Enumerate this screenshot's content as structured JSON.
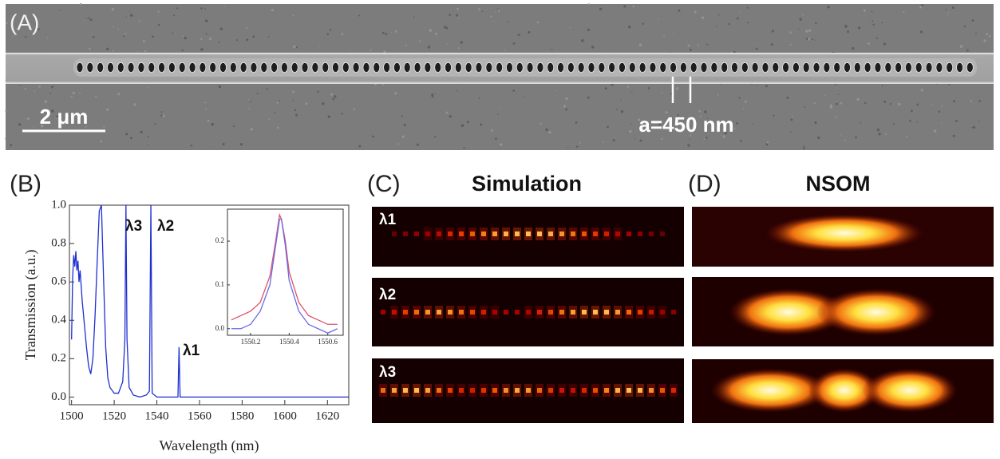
{
  "panels": {
    "a": {
      "label": "(A)",
      "scale_bar": "2 μm",
      "period": "a=450 nm"
    },
    "b": {
      "label": "(B)"
    },
    "c": {
      "label": "(C)",
      "title": "Simulation",
      "modes": [
        "λ1",
        "λ2",
        "λ3"
      ]
    },
    "d": {
      "label": "(D)",
      "title": "NSOM"
    }
  },
  "chart_data": [
    {
      "type": "line",
      "x_label": "Wavelength (nm)",
      "y_label": "Transmission (a.u.)",
      "annotations": [
        "λ3",
        "λ2",
        "λ1"
      ],
      "x": [
        1500,
        1500.5,
        1501,
        1501.5,
        1502,
        1502.5,
        1503,
        1503.5,
        1504,
        1505,
        1506,
        1507,
        1508,
        1509,
        1510,
        1511,
        1512,
        1513,
        1514,
        1515,
        1516,
        1517,
        1518,
        1520,
        1522,
        1524,
        1525,
        1525.5,
        1526,
        1527,
        1529,
        1532,
        1535,
        1536.5,
        1537.2,
        1537.8,
        1540,
        1545,
        1549.9,
        1550.4,
        1550.9,
        1560,
        1580,
        1600,
        1630
      ],
      "series": [
        {
          "color": "#1f2fd0",
          "values": [
            0.3,
            0.62,
            0.74,
            0.68,
            0.76,
            0.66,
            0.71,
            0.6,
            0.66,
            0.5,
            0.38,
            0.26,
            0.16,
            0.12,
            0.2,
            0.42,
            0.7,
            0.97,
            1.0,
            0.62,
            0.26,
            0.1,
            0.05,
            0.02,
            0.02,
            0.08,
            0.3,
            1.0,
            0.3,
            0.05,
            0.01,
            0.0,
            0.01,
            0.03,
            1.0,
            0.02,
            0.0,
            0.0,
            0.0,
            0.26,
            0.0,
            0.0,
            0.0,
            0.0,
            0.0
          ]
        }
      ],
      "xlim": [
        1499,
        1630
      ],
      "ylim": [
        -0.04,
        1.0
      ],
      "xticks": [
        1500,
        1520,
        1540,
        1560,
        1580,
        1600,
        1620
      ],
      "yticks": [
        {
          "value": 0,
          "label": "0.0"
        },
        0.2,
        0.4,
        0.6,
        0.8,
        {
          "value": 1,
          "label": "1.0"
        }
      ]
    },
    {
      "type": "line",
      "x": [
        1550.1,
        1550.15,
        1550.2,
        1550.25,
        1550.3,
        1550.33,
        1550.35,
        1550.36,
        1550.38,
        1550.4,
        1550.45,
        1550.5,
        1550.55,
        1550.6,
        1550.65
      ],
      "series": [
        {
          "color": "#e0506a",
          "values": [
            0.02,
            0.03,
            0.04,
            0.06,
            0.12,
            0.2,
            0.26,
            0.25,
            0.2,
            0.13,
            0.06,
            0.03,
            0.02,
            0.01,
            0.01
          ]
        },
        {
          "color": "#6a6ae8",
          "values": [
            0.0,
            0.0,
            0.01,
            0.04,
            0.1,
            0.19,
            0.25,
            0.25,
            0.19,
            0.11,
            0.04,
            0.01,
            0.0,
            -0.01,
            0.0
          ]
        }
      ],
      "xlim": [
        1550.08,
        1550.68
      ],
      "ylim": [
        -0.015,
        0.273
      ],
      "xticks": [
        1550.2,
        1550.4,
        1550.6
      ],
      "yticks": [
        {
          "value": 0,
          "label": "0.0"
        },
        0.1,
        0.2
      ]
    }
  ]
}
